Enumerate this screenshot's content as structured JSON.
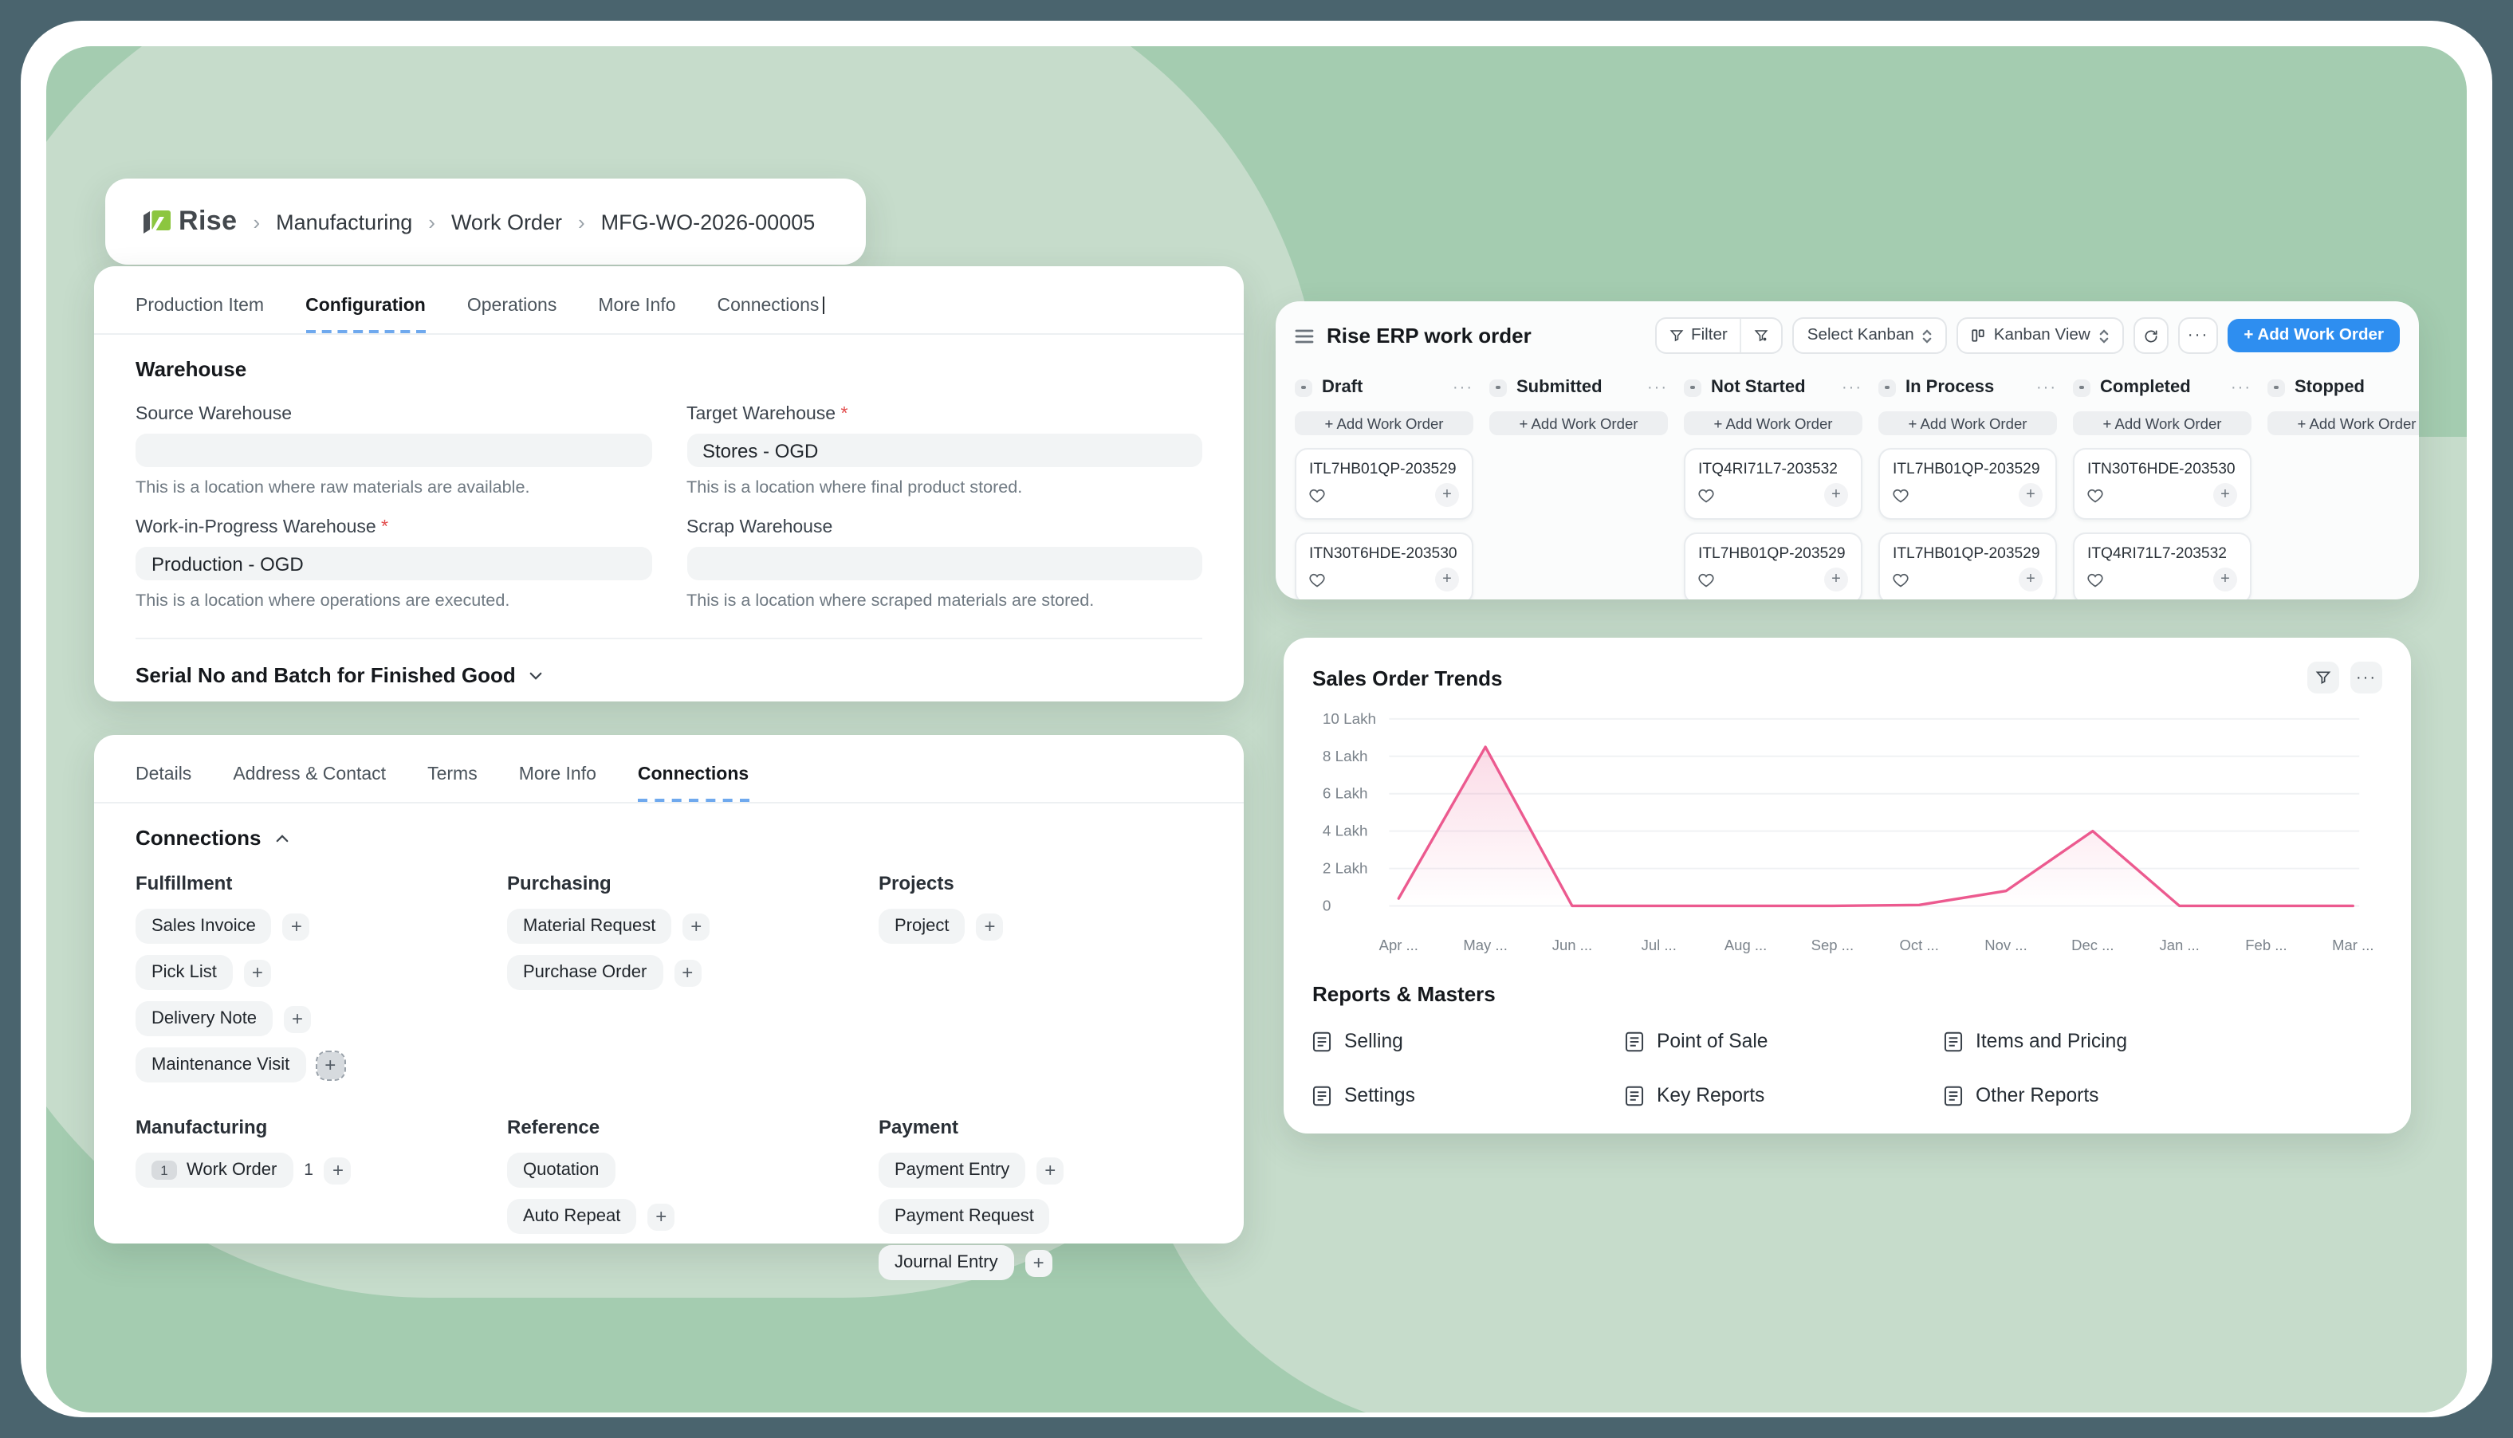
{
  "colors": {
    "accent_blue": "#2e8ef0",
    "chart_pink": "#ec5a8f",
    "logo_green": "#8cc63f",
    "bg_green_dark": "#a4ccb0",
    "bg_green_light": "#c6dccb",
    "frame_dark": "#4a646e"
  },
  "breadcrumb": {
    "logo_text": "Rise",
    "separator": "›",
    "items": [
      "Manufacturing",
      "Work Order",
      "MFG-WO-2026-00005"
    ]
  },
  "work_order_card": {
    "tabs": [
      "Production Item",
      "Configuration",
      "Operations",
      "More Info",
      "Connections"
    ],
    "active_tab": "Configuration",
    "section_title": "Warehouse",
    "fields": [
      {
        "label": "Source Warehouse",
        "required": false,
        "value": "",
        "help": "This is a location where raw materials are available."
      },
      {
        "label": "Target Warehouse",
        "required": true,
        "value": "Stores - OGD",
        "help": "This is a location where final product stored."
      },
      {
        "label": "Work-in-Progress Warehouse",
        "required": true,
        "value": "Production - OGD",
        "help": "This is a location where operations are executed."
      },
      {
        "label": "Scrap Warehouse",
        "required": false,
        "value": "",
        "help": "This is a location where scraped materials are stored."
      }
    ],
    "collapsed_section": "Serial No and Batch for Finished Good"
  },
  "details_card": {
    "tabs": [
      "Details",
      "Address & Contact",
      "Terms",
      "More Info",
      "Connections"
    ],
    "active_tab": "Connections",
    "section_title": "Connections",
    "groups": [
      {
        "title": "Fulfillment",
        "items": [
          {
            "label": "Sales Invoice",
            "plus": true
          },
          {
            "label": "Pick List",
            "plus": true
          },
          {
            "label": "Delivery Note",
            "plus": true
          },
          {
            "label": "Maintenance Visit",
            "plus": true,
            "plus_active": true
          }
        ]
      },
      {
        "title": "Purchasing",
        "items": [
          {
            "label": "Material Request",
            "plus": true
          },
          {
            "label": "Purchase Order",
            "plus": true
          }
        ]
      },
      {
        "title": "Projects",
        "items": [
          {
            "label": "Project",
            "plus": true
          }
        ]
      },
      {
        "title": "Manufacturing",
        "items": [
          {
            "label": "Work Order",
            "badge": "1",
            "count": "1",
            "plus": true
          }
        ]
      },
      {
        "title": "Reference",
        "items": [
          {
            "label": "Quotation",
            "plus": false
          },
          {
            "label": "Auto Repeat",
            "plus": true
          }
        ]
      },
      {
        "title": "Payment",
        "items": [
          {
            "label": "Payment Entry",
            "plus": true
          },
          {
            "label": "Payment Request",
            "plus": false
          },
          {
            "label": "Journal Entry",
            "plus": true
          }
        ]
      }
    ]
  },
  "kanban": {
    "title": "Rise ERP work order",
    "toolbar": {
      "filter_label": "Filter",
      "select_kanban_label": "Select Kanban",
      "kanban_view_label": "Kanban View",
      "more_label": "···",
      "add_button_label": "+ Add Work Order"
    },
    "add_card_label": "+ Add Work Order",
    "columns": [
      {
        "name": "Draft",
        "menu": "···",
        "cards": [
          "ITL7HB01QP-203529",
          "ITN30T6HDE-203530"
        ]
      },
      {
        "name": "Submitted",
        "menu": "···",
        "cards": []
      },
      {
        "name": "Not Started",
        "menu": "···",
        "cards": [
          "ITQ4RI71L7-203532",
          "ITL7HB01QP-203529"
        ]
      },
      {
        "name": "In Process",
        "menu": "···",
        "cards": [
          "ITL7HB01QP-203529",
          "ITL7HB01QP-203529"
        ]
      },
      {
        "name": "Completed",
        "menu": "···",
        "cards": [
          "ITN30T6HDE-203530",
          "ITQ4RI71L7-203532"
        ]
      },
      {
        "name": "Stopped",
        "menu": "",
        "cards": []
      }
    ]
  },
  "chart_card": {
    "title": "Sales Order Trends",
    "more_label": "···",
    "reports": {
      "title": "Reports & Masters",
      "items": [
        "Selling",
        "Point of Sale",
        "Items and Pricing",
        "Settings",
        "Key Reports",
        "Other Reports"
      ]
    }
  },
  "chart_data": {
    "type": "line",
    "title": "Sales Order Trends",
    "x": [
      "Apr ...",
      "May ...",
      "Jun ...",
      "Jul ...",
      "Aug ...",
      "Sep ...",
      "Oct ...",
      "Nov ...",
      "Dec ...",
      "Jan ...",
      "Feb ...",
      "Mar ..."
    ],
    "series": [
      {
        "name": "Sales Order Trends",
        "values": [
          0.4,
          8.5,
          0,
          0,
          0,
          0,
          0.05,
          0.8,
          4.0,
          0,
          0,
          0
        ]
      }
    ],
    "value_unit": "Lakh",
    "yticks": [
      {
        "value": 10,
        "label": "10 Lakh"
      },
      {
        "value": 8,
        "label": "8 Lakh"
      },
      {
        "value": 6,
        "label": "6 Lakh"
      },
      {
        "value": 4,
        "label": "4 Lakh"
      },
      {
        "value": 2,
        "label": "2 Lakh"
      },
      {
        "value": 0,
        "label": "0"
      }
    ],
    "ylim": [
      0,
      10
    ],
    "grid": true,
    "legend_position": "none",
    "line_color": "#ec5a8f"
  },
  "icons": {
    "plus": "+",
    "breadcrumb_chevron": "›",
    "dots_menu": "···"
  }
}
